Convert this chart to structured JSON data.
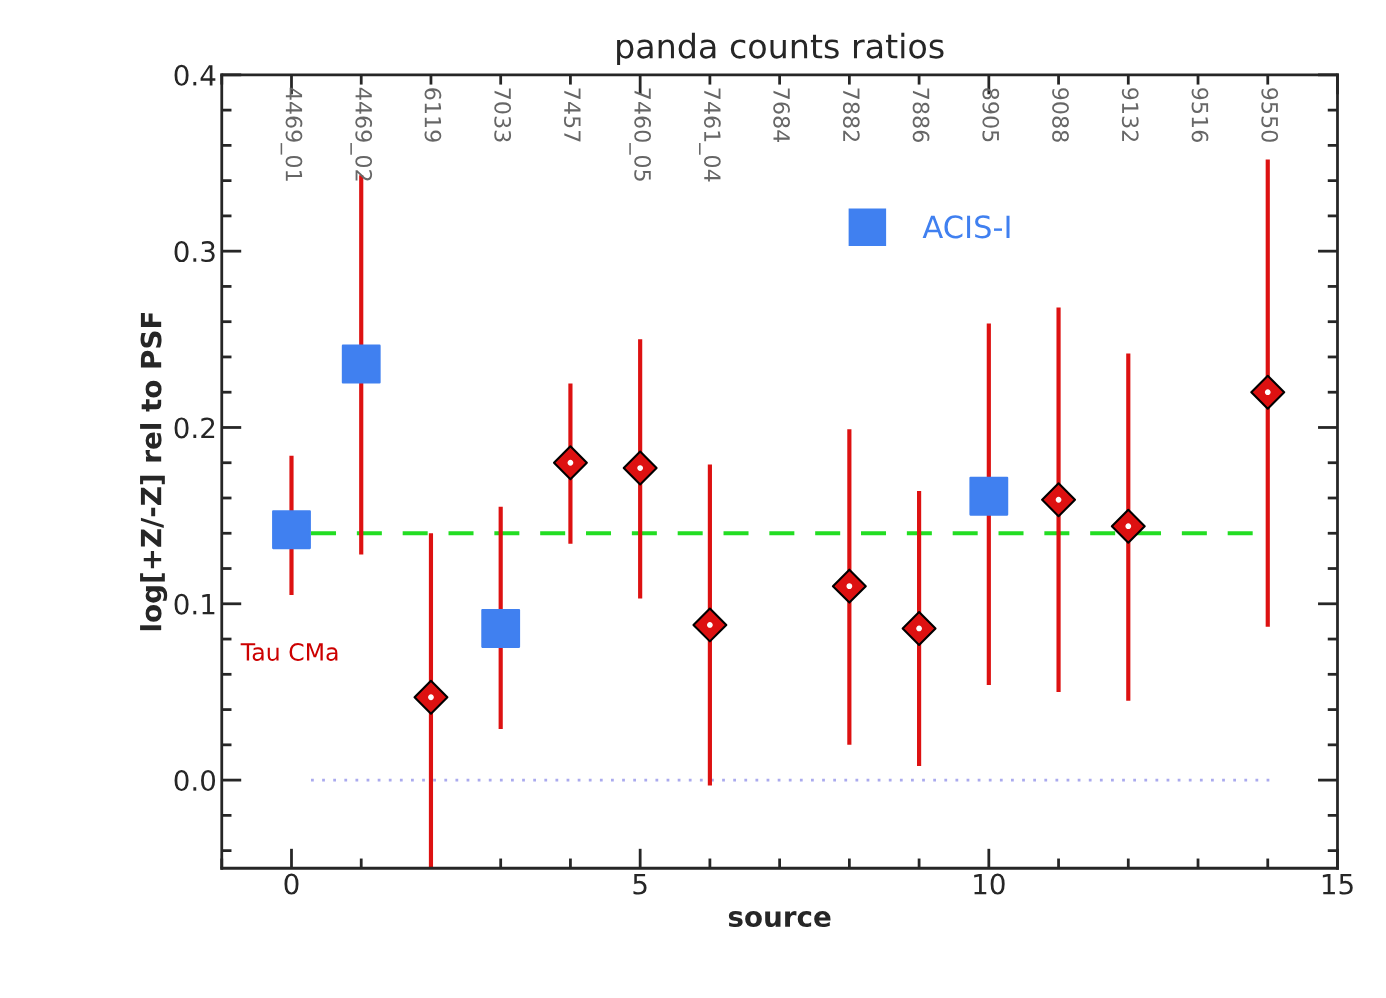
{
  "chart_data": {
    "type": "scatter",
    "title": "panda counts ratios",
    "xlabel": "source",
    "ylabel": "log[+Z/-Z] rel to PSF",
    "xlim": [
      -1,
      15
    ],
    "xticks": [
      0,
      5,
      10,
      15
    ],
    "ylim": [
      -0.05,
      0.4
    ],
    "yticks": [
      {
        "value": 0.0,
        "label": "0.0"
      },
      {
        "value": 0.1,
        "label": "0.1"
      },
      {
        "value": 0.2,
        "label": "0.2"
      },
      {
        "value": 0.3,
        "label": "0.3"
      },
      {
        "value": 0.4,
        "label": "0.4"
      }
    ],
    "series": [
      {
        "name": "ACIS-I",
        "color": "#4080f0",
        "marker": "square",
        "x": [
          0,
          1,
          3,
          10
        ],
        "values": [
          0.142,
          0.236,
          0.086,
          0.161
        ],
        "errors": [
          [
            0.105,
            0.184
          ],
          [
            0.128,
            0.343
          ],
          [
            0.029,
            0.155
          ],
          [
            0.054,
            0.259
          ]
        ]
      },
      {
        "color": "#dd1111",
        "marker": "diamond",
        "x": [
          2,
          4,
          5,
          6,
          8,
          9,
          11,
          12,
          14
        ],
        "values": [
          0.047,
          0.18,
          0.177,
          0.088,
          0.11,
          0.086,
          0.159,
          0.144,
          0.22
        ],
        "errors": [
          [
            -0.05,
            0.14
          ],
          [
            0.134,
            0.225
          ],
          [
            0.103,
            0.25
          ],
          [
            -0.003,
            0.179
          ],
          [
            0.02,
            0.199
          ],
          [
            0.008,
            0.164
          ],
          [
            0.05,
            0.268
          ],
          [
            0.045,
            0.242
          ],
          [
            0.087,
            0.352
          ]
        ]
      }
    ],
    "ref_lines": [
      {
        "axis": "y",
        "value": 0.14,
        "color": "#22dd22",
        "line_style": "dashed"
      },
      {
        "axis": "y",
        "value": 0.0,
        "color": "#aaaaee",
        "line_style": "dotted"
      }
    ],
    "annotations": [
      "Tau CMa",
      "4469_01",
      "4469_02",
      "6119",
      "7033",
      "7457",
      "7460_05",
      "7461_04",
      "7684",
      "7882",
      "7886",
      "8905",
      "9088",
      "9132",
      "9516",
      "9550"
    ],
    "legend": "top",
    "grid": false
  }
}
